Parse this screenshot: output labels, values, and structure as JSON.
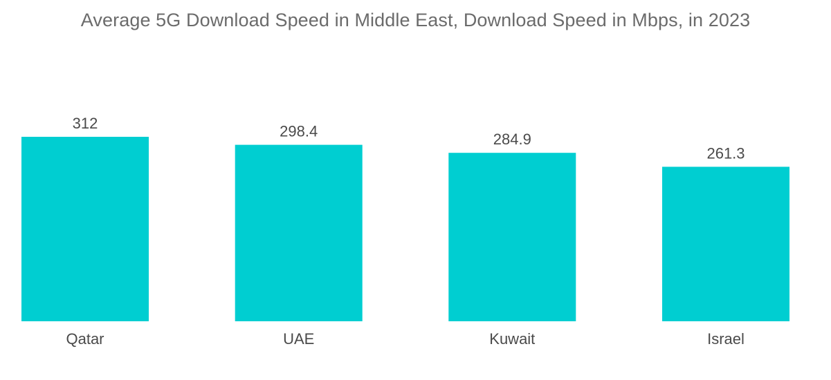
{
  "chart_data": {
    "type": "bar",
    "title": "Average 5G Download Speed in Middle East, Download Speed in Mbps, in 2023",
    "categories": [
      "Qatar",
      "UAE",
      "Kuwait",
      "Israel"
    ],
    "values": [
      312,
      298.4,
      284.9,
      261.3
    ],
    "value_labels": [
      "312",
      "298.4",
      "284.9",
      "261.3"
    ],
    "xlabel": "",
    "ylabel": "",
    "ylim": [
      0,
      312
    ],
    "grid": false,
    "legend": "none",
    "bar_color": "#00ced1"
  }
}
